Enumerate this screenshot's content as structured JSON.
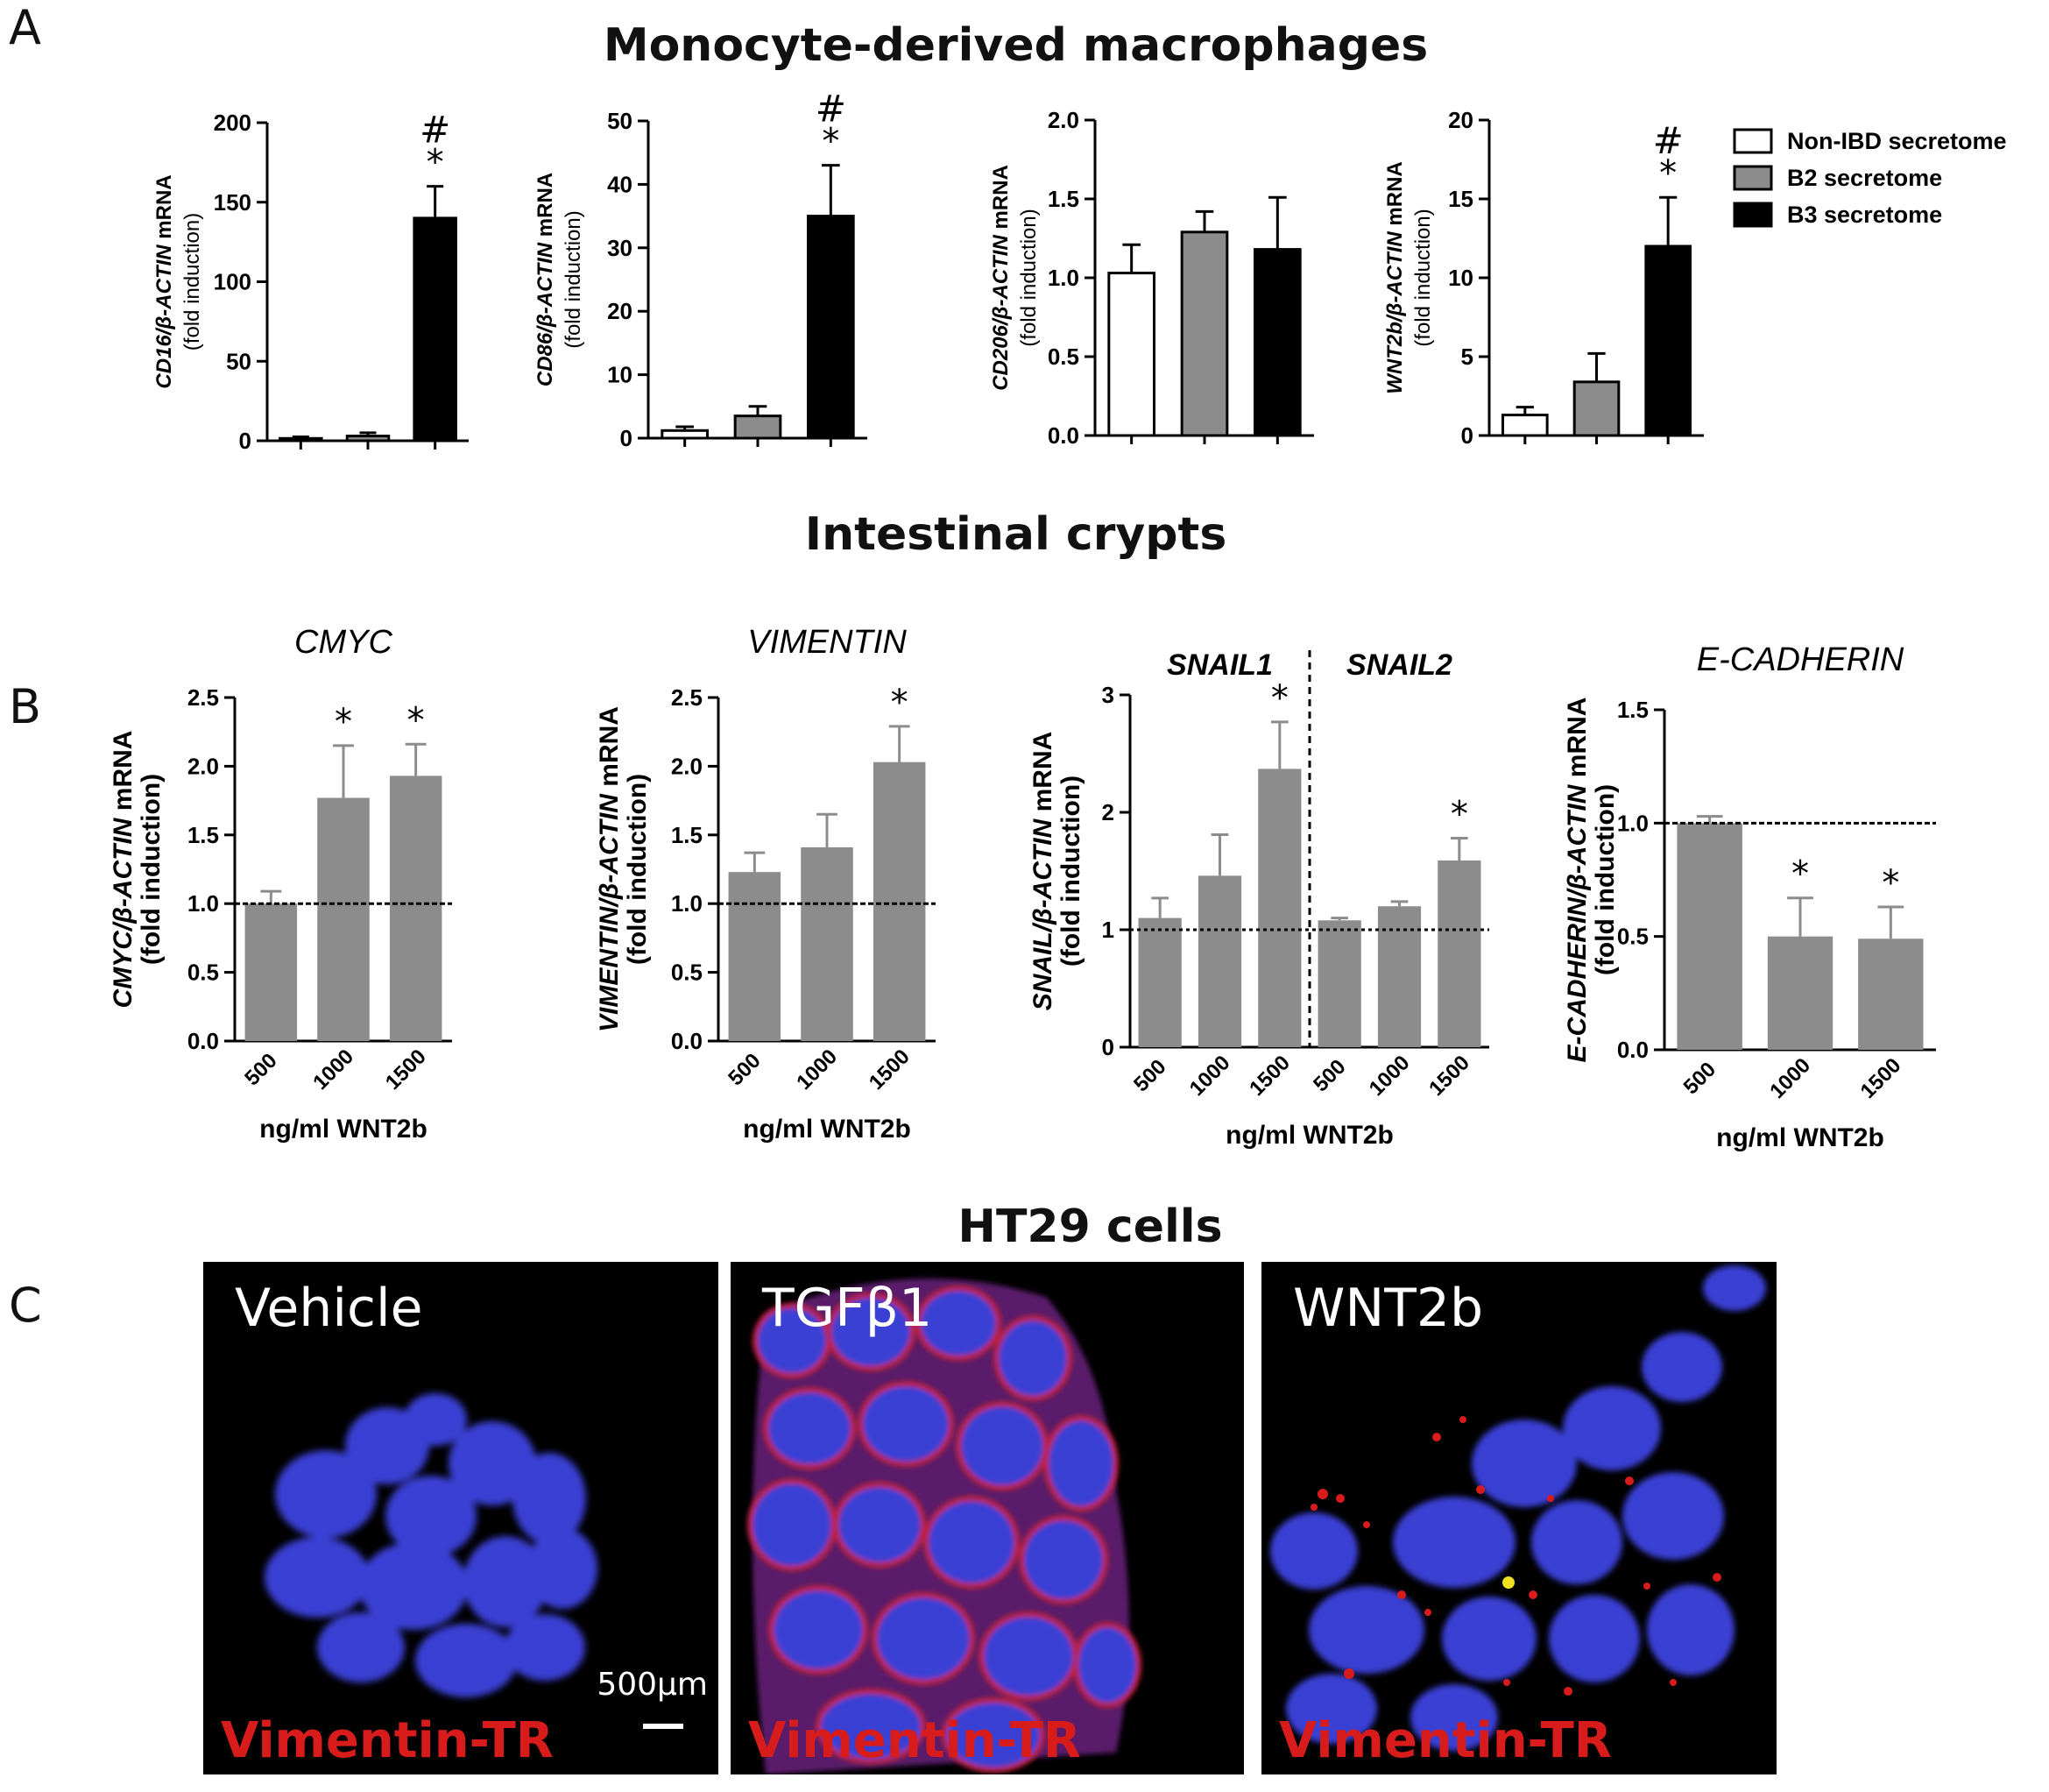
{
  "panel_letters": {
    "a": "A",
    "b": "B",
    "c": "C"
  },
  "sections": {
    "a_title": "Monocyte-derived macrophages",
    "b_title": "Intestinal crypts",
    "c_title": "HT29 cells"
  },
  "colors": {
    "white_bar": "#ffffff",
    "gray_bar": "#8c8c8c",
    "black_bar": "#000000",
    "stain_red": "#d81c1c",
    "nuclei_blue": "#3a3fd4"
  },
  "chart_data": [
    {
      "id": "cd16",
      "type": "bar",
      "panel": "A",
      "ylabel_gene": "CD16/β-ACTIN",
      "ylabel_suffix": " mRNA",
      "ylabel_line2": "(fold induction)",
      "ylim": [
        0,
        200
      ],
      "yticks": [
        "0",
        "50",
        "100",
        "150",
        "200"
      ],
      "categories": [
        "Non-IBD secretome",
        "B2 secretome",
        "B3 secretome"
      ],
      "values": [
        1.5,
        3,
        140
      ],
      "errors": [
        1,
        2,
        20
      ],
      "annotations": {
        "2": [
          "#",
          "*"
        ]
      }
    },
    {
      "id": "cd86",
      "type": "bar",
      "panel": "A",
      "ylabel_gene": "CD86/β-ACTIN",
      "ylabel_suffix": " mRNA",
      "ylabel_line2": "(fold induction)",
      "ylim": [
        0,
        50
      ],
      "yticks": [
        "0",
        "10",
        "20",
        "30",
        "40",
        "50"
      ],
      "categories": [
        "Non-IBD secretome",
        "B2 secretome",
        "B3 secretome"
      ],
      "values": [
        1.2,
        3.5,
        35
      ],
      "errors": [
        0.6,
        1.5,
        8
      ],
      "annotations": {
        "2": [
          "#",
          "*"
        ]
      }
    },
    {
      "id": "cd206",
      "type": "bar",
      "panel": "A",
      "ylabel_gene": "CD206/β-ACTIN",
      "ylabel_suffix": " mRNA",
      "ylabel_line2": "(fold induction)",
      "ylim": [
        0,
        2.0
      ],
      "yticks": [
        "0.0",
        "0.5",
        "1.0",
        "1.5",
        "2.0"
      ],
      "categories": [
        "Non-IBD secretome",
        "B2 secretome",
        "B3 secretome"
      ],
      "values": [
        1.03,
        1.29,
        1.18
      ],
      "errors": [
        0.18,
        0.13,
        0.33
      ],
      "annotations": {}
    },
    {
      "id": "wnt2b",
      "type": "bar",
      "panel": "A",
      "ylabel_gene": "WNT2b/β-ACTIN",
      "ylabel_suffix": " mRNA",
      "ylabel_line2": "(fold induction)",
      "ylim": [
        0,
        20
      ],
      "yticks": [
        "0",
        "5",
        "10",
        "15",
        "20"
      ],
      "categories": [
        "Non-IBD secretome",
        "B2 secretome",
        "B3 secretome"
      ],
      "values": [
        1.3,
        3.4,
        12
      ],
      "errors": [
        0.5,
        1.8,
        3.1
      ],
      "annotations": {
        "2": [
          "#",
          "*"
        ]
      }
    },
    {
      "id": "cmyc",
      "type": "bar",
      "panel": "B",
      "title": "CMYC",
      "ylabel_gene": "CMYC/β-ACTIN",
      "ylabel_suffix": " mRNA",
      "ylabel_line2": "(fold induction)",
      "ylim": [
        0,
        2.5
      ],
      "yticks": [
        "0.0",
        "0.5",
        "1.0",
        "1.5",
        "2.0",
        "2.5"
      ],
      "categories": [
        "500",
        "1000",
        "1500"
      ],
      "values": [
        1.0,
        1.77,
        1.93
      ],
      "errors": [
        0.09,
        0.38,
        0.23
      ],
      "reference_line": 1.0,
      "annotations": {
        "1": [
          "*"
        ],
        "2": [
          "*"
        ]
      },
      "xlabel": "ng/ml WNT2b"
    },
    {
      "id": "vimentin",
      "type": "bar",
      "panel": "B",
      "title": "VIMENTIN",
      "ylabel_gene": "VIMENTIN/β-ACTIN",
      "ylabel_suffix": " mRNA",
      "ylabel_line2": "(fold induction)",
      "ylim": [
        0,
        2.5
      ],
      "yticks": [
        "0.0",
        "0.5",
        "1.0",
        "1.5",
        "2.0",
        "2.5"
      ],
      "categories": [
        "500",
        "1000",
        "1500"
      ],
      "values": [
        1.23,
        1.41,
        2.03
      ],
      "errors": [
        0.14,
        0.24,
        0.26
      ],
      "reference_line": 1.0,
      "annotations": {
        "2": [
          "*"
        ]
      },
      "xlabel": "ng/ml WNT2b"
    },
    {
      "id": "snail",
      "type": "bar",
      "panel": "B",
      "group_titles": [
        "SNAIL1",
        "SNAIL2"
      ],
      "ylabel_gene": "SNAIL/β-ACTIN",
      "ylabel_suffix": " mRNA",
      "ylabel_line2": "(fold induction)",
      "ylim": [
        0,
        3
      ],
      "yticks": [
        "0",
        "1",
        "2",
        "3"
      ],
      "categories": [
        "500",
        "1000",
        "1500",
        "500",
        "1000",
        "1500"
      ],
      "values": [
        1.1,
        1.46,
        2.37,
        1.08,
        1.2,
        1.59
      ],
      "errors": [
        0.17,
        0.35,
        0.4,
        0.02,
        0.04,
        0.19
      ],
      "reference_line": 1.0,
      "annotations": {
        "2": [
          "*"
        ],
        "5": [
          "*"
        ]
      },
      "xlabel": "ng/ml WNT2b"
    },
    {
      "id": "ecadherin",
      "type": "bar",
      "panel": "B",
      "title": "E-CADHERIN",
      "ylabel_gene": "E-CADHERIN/β-ACTIN",
      "ylabel_suffix": " mRNA",
      "ylabel_line2": "(fold induction)",
      "ylim": [
        0,
        1.5
      ],
      "yticks": [
        "0.0",
        "0.5",
        "1.0",
        "1.5"
      ],
      "categories": [
        "500",
        "1000",
        "1500"
      ],
      "values": [
        1.0,
        0.5,
        0.49
      ],
      "errors": [
        0.03,
        0.17,
        0.14
      ],
      "reference_line": 1.0,
      "annotations": {
        "1": [
          "*"
        ],
        "2": [
          "*"
        ]
      },
      "xlabel": "ng/ml WNT2b"
    }
  ],
  "legend": {
    "items": [
      {
        "label": "Non-IBD secretome",
        "color": "#ffffff"
      },
      {
        "label": "B2 secretome",
        "color": "#8c8c8c"
      },
      {
        "label": "B3 secretome",
        "color": "#000000"
      }
    ]
  },
  "micrographs": [
    {
      "title": "Vehicle",
      "stain": "Vimentin-TR",
      "scale": "500µm"
    },
    {
      "title": "TGFβ1",
      "stain": "Vimentin-TR"
    },
    {
      "title": "WNT2b",
      "stain": "Vimentin-TR"
    }
  ]
}
